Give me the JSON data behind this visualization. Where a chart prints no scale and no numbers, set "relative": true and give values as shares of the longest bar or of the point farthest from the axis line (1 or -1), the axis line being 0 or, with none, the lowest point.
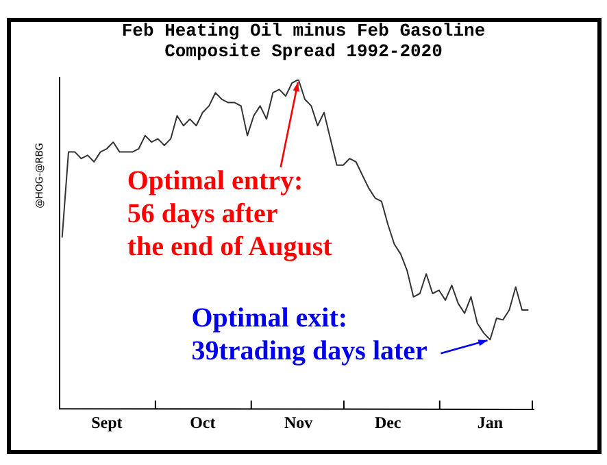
{
  "chart_data": {
    "type": "line",
    "title": "Feb Heating Oil minus Feb Gasoline\nComposite Spread 1992-2020",
    "ylabel": "@HOG-@RBG",
    "relative": true,
    "color": "#333333",
    "marker": "none",
    "grid": false,
    "legend": false,
    "categories": [
      null,
      null,
      null,
      null,
      null,
      null,
      null,
      "Sept",
      null,
      null,
      null,
      null,
      null,
      null,
      null,
      null,
      null,
      null,
      null,
      null,
      null,
      null,
      "Oct",
      null,
      null,
      null,
      null,
      null,
      null,
      null,
      null,
      null,
      null,
      null,
      null,
      null,
      null,
      "Nov",
      null,
      null,
      null,
      null,
      null,
      null,
      null,
      null,
      null,
      null,
      null,
      null,
      null,
      "Dec",
      null,
      null,
      null,
      null,
      null,
      null,
      null,
      null,
      null,
      null,
      null,
      null,
      null,
      null,
      null,
      "Jan",
      null,
      null,
      null,
      null,
      null,
      null
    ],
    "values": [
      0.52,
      0.78,
      0.78,
      0.76,
      0.77,
      0.75,
      0.78,
      0.79,
      0.81,
      0.78,
      0.78,
      0.78,
      0.79,
      0.83,
      0.81,
      0.82,
      0.8,
      0.82,
      0.89,
      0.86,
      0.88,
      0.86,
      0.9,
      0.92,
      0.96,
      0.94,
      0.93,
      0.93,
      0.92,
      0.83,
      0.89,
      0.92,
      0.88,
      0.96,
      0.97,
      0.95,
      0.99,
      1.0,
      0.94,
      0.92,
      0.86,
      0.9,
      0.82,
      0.74,
      0.74,
      0.76,
      0.75,
      0.71,
      0.67,
      0.64,
      0.63,
      0.56,
      0.5,
      0.47,
      0.42,
      0.34,
      0.35,
      0.41,
      0.35,
      0.36,
      0.33,
      0.375,
      0.32,
      0.29,
      0.34,
      0.26,
      0.23,
      0.21,
      0.275,
      0.27,
      0.3,
      0.37,
      0.3,
      0.3
    ],
    "annotations": [
      {
        "text": "Optimal entry:\n56 days after\nthe end of August",
        "x": "Nov",
        "y": 1.0
      },
      {
        "text": "Optimal exit:\n39trading days later",
        "x": "Jan",
        "y": 0.21
      }
    ]
  }
}
